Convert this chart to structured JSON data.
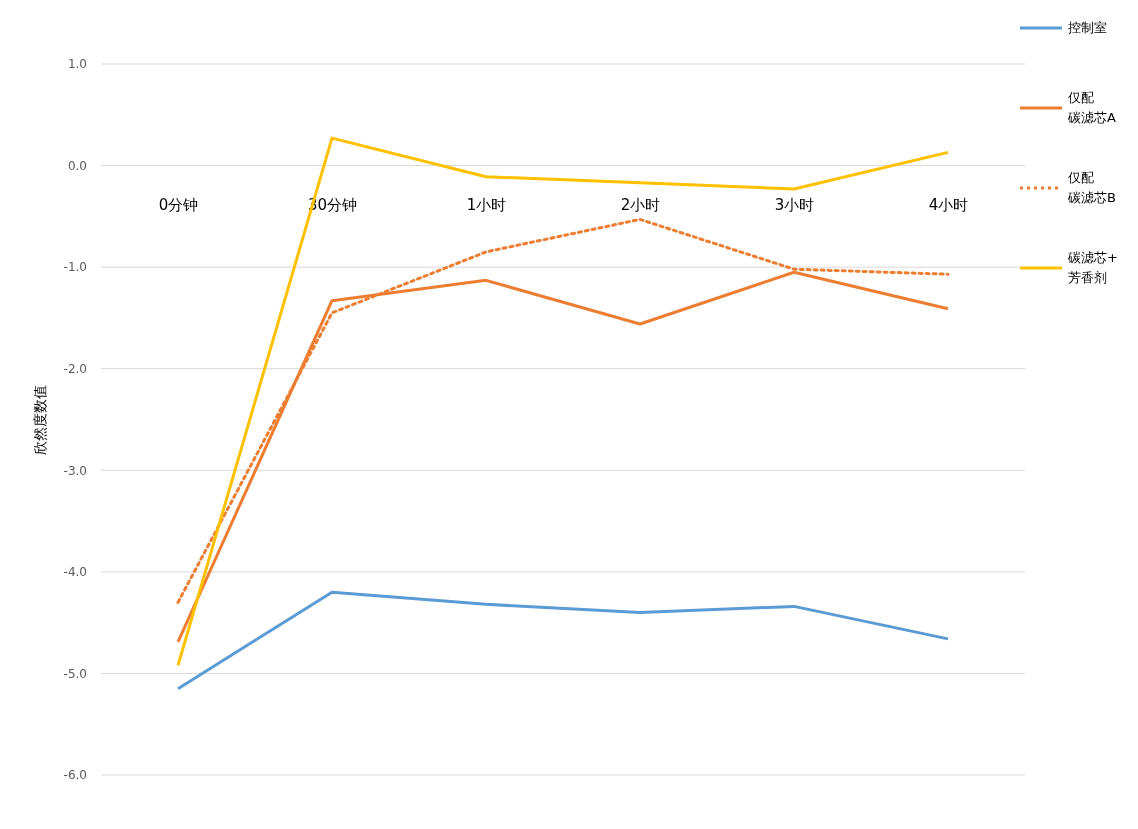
{
  "chart_data": {
    "type": "line",
    "ylabel": "欣然度数值",
    "categories": [
      "0分钟",
      "30分钟",
      "1小时",
      "2小时",
      "3小时",
      "4小时"
    ],
    "ylim": [
      -6,
      1
    ],
    "yticks": [
      {
        "value": -6,
        "label": "-6.0"
      },
      {
        "value": -5,
        "label": "-5.0"
      },
      {
        "value": -4,
        "label": "-4.0"
      },
      {
        "value": -3,
        "label": "-3.0"
      },
      {
        "value": -2,
        "label": "-2.0"
      },
      {
        "value": -1,
        "label": "-1.0"
      },
      {
        "value": 0,
        "label": "0.0"
      },
      {
        "value": 1,
        "label": "1.0"
      }
    ],
    "grid": "y",
    "legend": "right",
    "marker": "none",
    "series": [
      {
        "name": "控制室",
        "color": "#5b9bd5",
        "values": [
          -5.15,
          -4.2,
          -4.32,
          -4.4,
          -4.34,
          -4.66
        ]
      },
      {
        "name": "仅配碳滤芯A",
        "color": "#ed7d31",
        "values": [
          -4.69,
          -1.33,
          -1.13,
          -1.56,
          -1.05,
          -1.41
        ]
      },
      {
        "name": "仅配碳滤芯B",
        "color": "#ed7d31",
        "line_style": "dotted",
        "values": [
          -4.3,
          -1.45,
          -0.85,
          -0.53,
          -1.02,
          -1.07
        ]
      },
      {
        "name": "碳滤芯+芳香剂",
        "color": "#ffc000",
        "values": [
          -4.92,
          0.27,
          -0.11,
          -0.17,
          -0.23,
          0.13
        ]
      }
    ]
  }
}
